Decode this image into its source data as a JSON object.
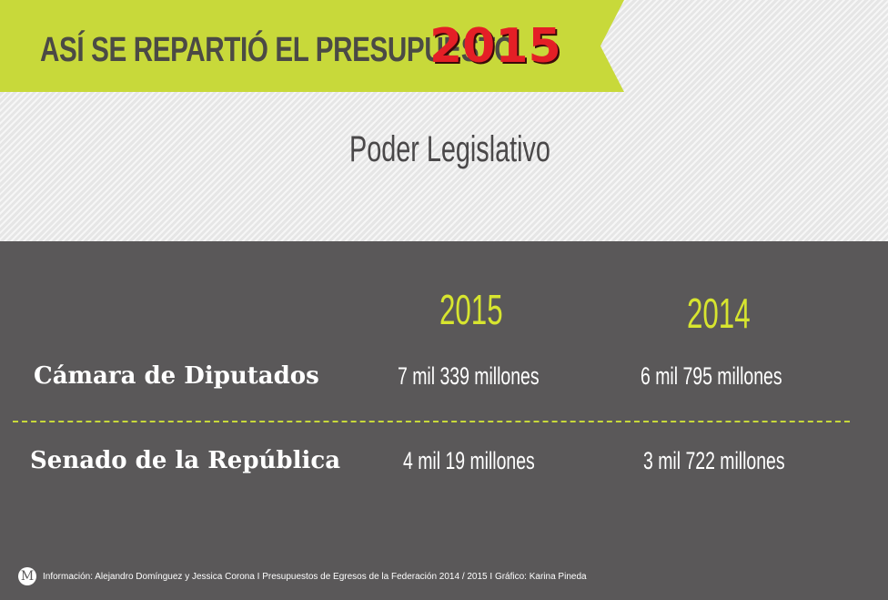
{
  "banner": {
    "title": "ASÍ SE REPARTIÓ EL PRESUPUESTO",
    "year": "2015"
  },
  "section_title": "Poder Legislativo",
  "columns": [
    "2015",
    "2014"
  ],
  "rows": [
    {
      "label": "Cámara de Diputados",
      "values": [
        "7 mil 339 millones",
        "6 mil 795 millones"
      ]
    },
    {
      "label": "Senado de la República",
      "values": [
        "4 mil 19 millones",
        "3 mil 722 millones"
      ]
    }
  ],
  "footer": {
    "logo": "M",
    "credits": "Información: Alejandro Domínguez y Jessica Corona I Presupuestos de Egresos de la Federación 2014 / 2015 I Gráfico: Karina Pineda"
  },
  "colors": {
    "accent": "#c8d93a",
    "year_red": "#e41f26",
    "dark_bg": "#5a5859",
    "year_col": "#d7e52f"
  }
}
